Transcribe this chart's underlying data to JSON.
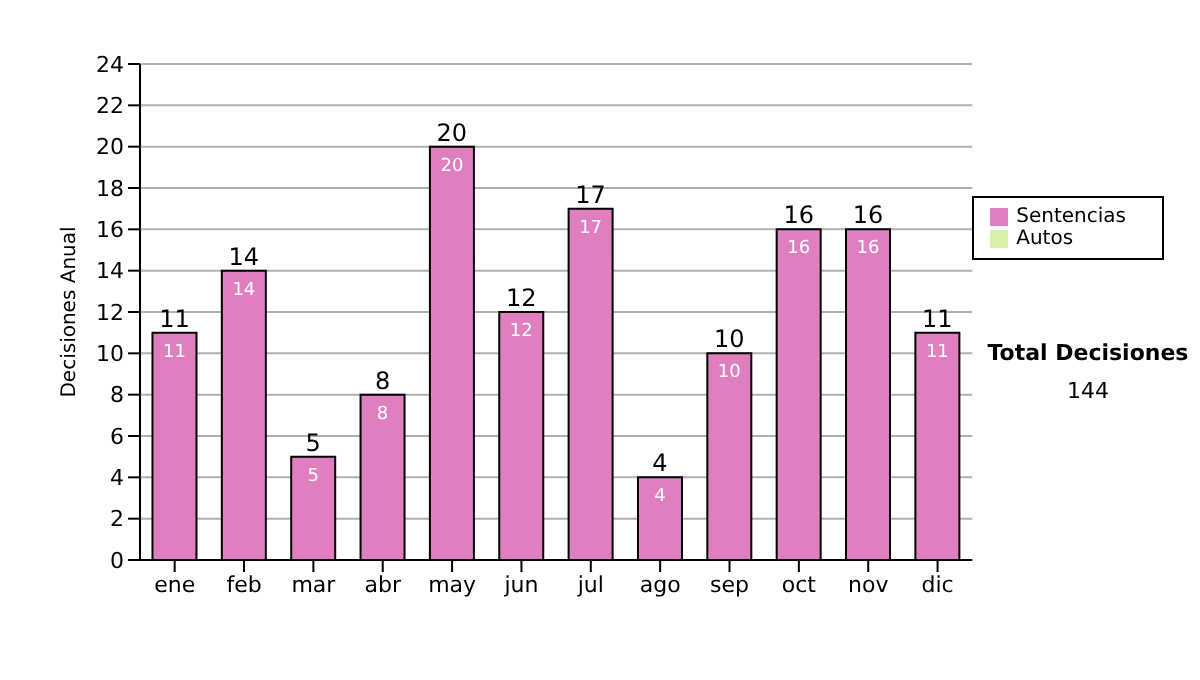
{
  "chart_data": {
    "type": "bar",
    "ylabel": "Decisiones Anual",
    "categories": [
      "ene",
      "feb",
      "mar",
      "abr",
      "may",
      "jun",
      "jul",
      "ago",
      "sep",
      "oct",
      "nov",
      "dic"
    ],
    "stacked": true,
    "series": [
      {
        "name": "Sentencias",
        "color": "#e07fc0",
        "values": [
          11,
          14,
          5,
          8,
          20,
          12,
          17,
          4,
          10,
          16,
          16,
          11
        ],
        "value_labels": [
          "11",
          "14",
          "5",
          "8",
          "20",
          "12",
          "17",
          "4",
          "10",
          "16",
          "16",
          "11"
        ]
      },
      {
        "name": "Autos",
        "color": "#d8f0a8",
        "values": [
          0,
          0,
          0,
          0,
          0,
          0,
          0,
          0,
          0,
          0,
          0,
          0
        ]
      }
    ],
    "totals": [
      "11",
      "14",
      "5",
      "8",
      "20",
      "12",
      "17",
      "4",
      "10",
      "16",
      "16",
      "11"
    ],
    "ylim": [
      0,
      24
    ],
    "yticks": [
      0,
      2,
      4,
      6,
      8,
      10,
      12,
      14,
      16,
      18,
      20,
      22,
      24
    ],
    "grid": "y",
    "legend": "right",
    "annotations": [
      "Total Decisiones",
      "144"
    ]
  }
}
